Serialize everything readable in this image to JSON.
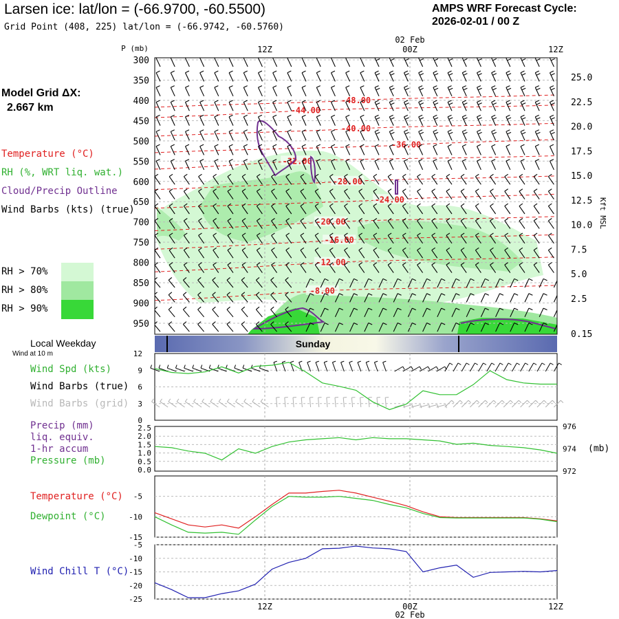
{
  "header": {
    "title": "Larsen ice:  lat/lon = (-66.9700, -60.5500)",
    "grid_point": "Grid Point (408, 225) lat/lon = (-66.9742, -60.5760)",
    "cycle_title": "AMPS WRF Forecast Cycle:",
    "cycle_value": "2026-02-01 / 00  Z"
  },
  "legend": {
    "grid_label": "Model Grid ΔX:",
    "grid_value": "2.667 km",
    "temperature": "Temperature (°C)",
    "rh": "RH (%, WRT liq. wat.)",
    "cloud": "Cloud/Precip Outline",
    "wind": "Wind Barbs (kts) (true)",
    "rh70": "RH > 70%",
    "rh80": "RH > 80%",
    "rh90": "RH > 90%",
    "rh70_color": "#d4f8d4",
    "rh80_color": "#a0e8a0",
    "rh90_color": "#38d838"
  },
  "time_axis": {
    "top_ticks": [
      "12Z",
      "00Z",
      "12Z"
    ],
    "date_label": "02 Feb",
    "bottom_ticks": [
      "12Z",
      "00Z",
      "12Z"
    ]
  },
  "weekday": {
    "label": "Local Weekday",
    "wind_note": "Wind at 10 m",
    "day": "Sunday"
  },
  "panels": {
    "wind_spd": "Wind Spd (kts)",
    "wind_barbs_true": "Wind Barbs (true)",
    "wind_barbs_grid": "Wind Barbs (grid)",
    "precip": "Precip (mm)",
    "precip_liq": "liq. equiv.",
    "precip_accum": "1-hr accum",
    "pressure": "Pressure (mb)",
    "pressure_unit": "(mb)",
    "temperature": "Temperature (°C)",
    "dewpoint": "Dewpoint (°C)",
    "wind_chill": "Wind Chill T (°C)"
  },
  "colors": {
    "temperature": "#e02020",
    "rh_line": "#30c030",
    "cloud": "#703090",
    "wind_chill": "#2020b0",
    "grid_barbs": "#b0b0b0",
    "weekday_band": "#5a6ab0"
  },
  "chart_data": [
    {
      "type": "heatmap",
      "name": "cross-section",
      "p_axis_label": "P (mb)",
      "ylabel": "Kft MSL",
      "pressure_levels": [
        300,
        350,
        400,
        450,
        500,
        550,
        600,
        650,
        700,
        750,
        800,
        850,
        900,
        950
      ],
      "pressure_tick_labels": [
        "300",
        "350",
        "400",
        "450",
        "500",
        "550",
        "600",
        "650",
        "700",
        "750",
        "800",
        "850",
        "900",
        "950"
      ],
      "height_kft": [
        25.0,
        22.5,
        20.0,
        17.5,
        15.0,
        12.5,
        10.0,
        7.5,
        5.0,
        2.5,
        0.15
      ],
      "height_tick_labels": [
        "25.0",
        "22.5",
        "20.0",
        "17.5",
        "15.0",
        "12.5",
        "10.0",
        "7.5",
        "5.0",
        "2.5",
        "0.15"
      ],
      "x_hours": [
        0,
        48
      ],
      "temperature_isotherms": [
        {
          "value": -48,
          "label": "-48.00",
          "p_label": 400,
          "t_label": 24
        },
        {
          "value": -44,
          "label": "-44.00",
          "p_label": 425,
          "t_label": 18
        },
        {
          "value": -40,
          "label": "-40.00",
          "p_label": 470,
          "t_label": 24
        },
        {
          "value": -36,
          "label": "-36.00",
          "p_label": 510,
          "t_label": 30
        },
        {
          "value": -32,
          "label": "-32.00",
          "p_label": 550,
          "t_label": 17
        },
        {
          "value": -28,
          "label": "-28.00",
          "p_label": 600,
          "t_label": 23
        },
        {
          "value": -24,
          "label": "-24.00",
          "p_label": 645,
          "t_label": 28
        },
        {
          "value": -20,
          "label": "-20.00",
          "p_label": 700,
          "t_label": 21
        },
        {
          "value": -16,
          "label": "-16.00",
          "p_label": 745,
          "t_label": 22
        },
        {
          "value": -12,
          "label": "-12.00",
          "p_label": 800,
          "t_label": 21
        },
        {
          "value": -8,
          "label": "-8.00",
          "p_label": 870,
          "t_label": 20
        }
      ]
    },
    {
      "type": "line",
      "name": "wind-speed",
      "ylabel": "Wind Spd (kts)",
      "ylim": [
        0,
        12
      ],
      "y_ticks": [
        "12",
        "9",
        "6",
        "3",
        "0"
      ],
      "x_hours": [
        0,
        2,
        4,
        6,
        8,
        10,
        12,
        14,
        16,
        18,
        20,
        22,
        24,
        26,
        28,
        30,
        32,
        34,
        36,
        38,
        40,
        42,
        44,
        46,
        48
      ],
      "values": [
        9.3,
        8.6,
        8.4,
        8.7,
        9.6,
        8.5,
        9.7,
        9.9,
        10.4,
        8.7,
        6.7,
        6.1,
        5.4,
        3.3,
        1.9,
        2.9,
        5.3,
        4.6,
        4.6,
        6.4,
        8.9,
        7.3,
        6.7,
        6.5,
        6.5
      ]
    },
    {
      "type": "line",
      "name": "pressure",
      "ylabel": "Pressure (mb)",
      "ylim": [
        972,
        976
      ],
      "y_ticks": [
        "976",
        "974",
        "972"
      ],
      "precip_ticks": [
        "2.5",
        "2.0",
        "1.5",
        "1.0",
        "0.5",
        "0.0"
      ],
      "precip_ylim": [
        0,
        2.5
      ],
      "x_hours": [
        0,
        2,
        4,
        6,
        8,
        10,
        12,
        14,
        16,
        18,
        20,
        22,
        24,
        26,
        28,
        30,
        32,
        34,
        36,
        38,
        40,
        42,
        44,
        46,
        48
      ],
      "values": [
        974.2,
        974.1,
        973.8,
        973.6,
        973.0,
        974.0,
        973.6,
        974.2,
        974.6,
        974.8,
        974.9,
        975.0,
        974.8,
        975.0,
        974.9,
        974.9,
        974.8,
        974.7,
        974.4,
        974.5,
        974.3,
        974.2,
        974.1,
        973.9,
        973.6
      ]
    },
    {
      "type": "line",
      "name": "temperature-dewpoint",
      "ylim": [
        -15,
        0
      ],
      "y_ticks": [
        "-5",
        "-10",
        "-15"
      ],
      "x_hours": [
        0,
        2,
        4,
        6,
        8,
        10,
        12,
        14,
        16,
        18,
        20,
        22,
        24,
        26,
        28,
        30,
        32,
        34,
        36,
        38,
        40,
        42,
        44,
        46,
        48
      ],
      "series": [
        {
          "name": "Temperature (°C)",
          "values": [
            -9.0,
            -10.5,
            -12.0,
            -12.5,
            -12.0,
            -12.8,
            -10.0,
            -7.0,
            -4.2,
            -4.2,
            -3.8,
            -3.5,
            -4.2,
            -5.2,
            -6.2,
            -7.3,
            -8.8,
            -10.0,
            -10.2,
            -10.2,
            -10.2,
            -10.2,
            -10.2,
            -10.5,
            -11.0
          ]
        },
        {
          "name": "Dewpoint (°C)",
          "values": [
            -10.0,
            -12.0,
            -13.8,
            -14.0,
            -13.8,
            -14.3,
            -10.8,
            -7.5,
            -5.0,
            -5.2,
            -5.2,
            -5.0,
            -5.5,
            -6.0,
            -7.0,
            -7.8,
            -9.2,
            -10.2,
            -10.3,
            -10.3,
            -10.3,
            -10.3,
            -10.3,
            -10.6,
            -11.2
          ]
        }
      ]
    },
    {
      "type": "line",
      "name": "wind-chill",
      "ylabel": "Wind Chill T (°C)",
      "ylim": [
        -25,
        -5
      ],
      "y_ticks": [
        "-5",
        "-10",
        "-15",
        "-20",
        "-25"
      ],
      "x_hours": [
        0,
        2,
        4,
        6,
        8,
        10,
        12,
        14,
        16,
        18,
        20,
        22,
        24,
        26,
        28,
        30,
        32,
        34,
        36,
        38,
        40,
        42,
        44,
        46,
        48
      ],
      "values": [
        -19.0,
        -21.5,
        -24.5,
        -24.5,
        -23.0,
        -22.0,
        -19.5,
        -14.0,
        -11.5,
        -10.0,
        -6.5,
        -6.3,
        -5.5,
        -6.2,
        -6.5,
        -7.5,
        -15.0,
        -13.5,
        -12.5,
        -17.0,
        -15.2,
        -15.0,
        -14.8,
        -15.0,
        -14.5
      ]
    }
  ]
}
